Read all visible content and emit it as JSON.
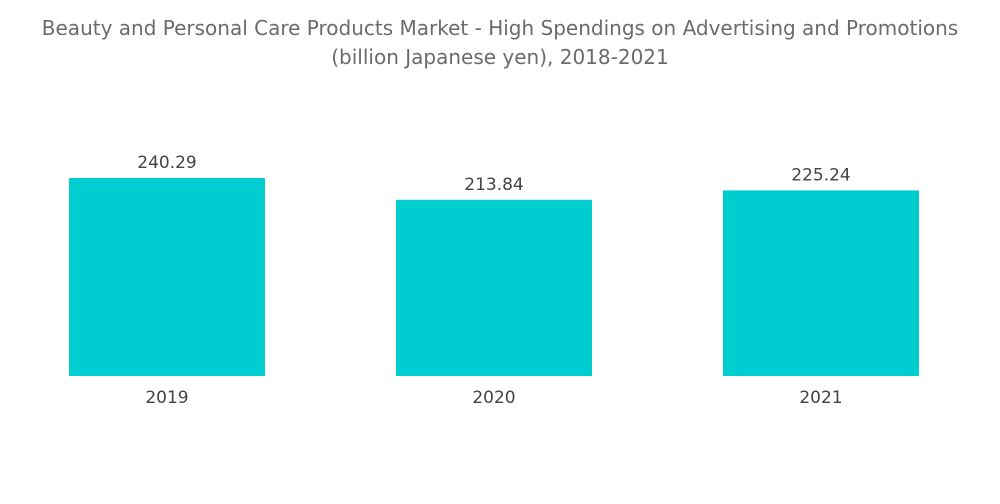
{
  "chart_data": {
    "type": "bar",
    "title_line1": "Beauty and Personal Care Products Market - High Spendings on Advertising and Promotions",
    "title_line2": "(billion Japanese yen), 2018-2021",
    "categories": [
      "2019",
      "2020",
      "2021"
    ],
    "values": [
      240.29,
      213.84,
      225.24
    ],
    "value_labels": [
      "240.29",
      "213.84",
      "225.24"
    ],
    "bar_color": "#00CDD0",
    "xlabel": "",
    "ylabel": "",
    "grid": false,
    "legend": "none"
  }
}
